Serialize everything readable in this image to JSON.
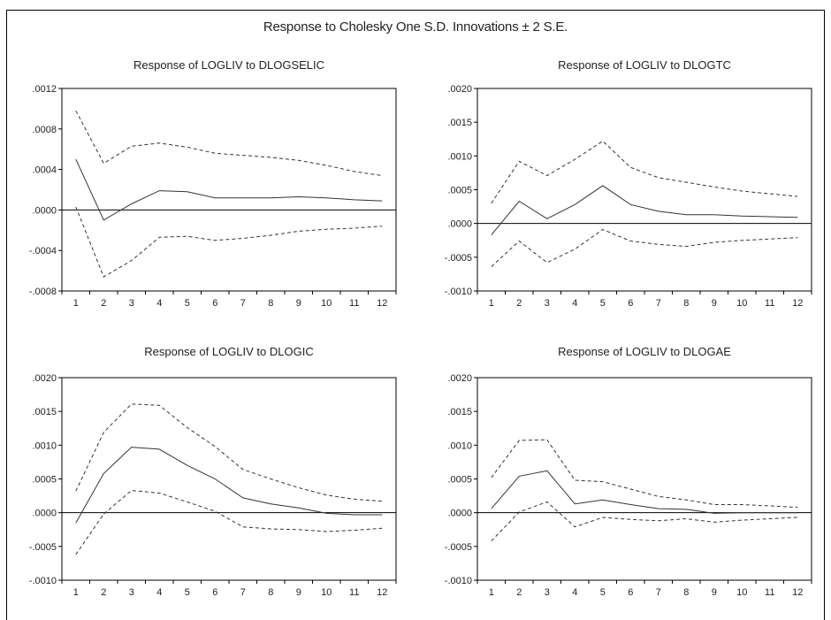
{
  "title": "Response to Cholesky One S.D. Innovations ± 2 S.E.",
  "chart_data": [
    {
      "type": "line",
      "title": "Response of LOGLIV to DLOGSELIC",
      "x": [
        1,
        2,
        3,
        4,
        5,
        6,
        7,
        8,
        9,
        10,
        11,
        12
      ],
      "ylim": [
        -0.0008,
        0.0012
      ],
      "yticks": [
        ".0012",
        ".0008",
        ".0004",
        ".0000",
        "-.0004",
        "-.0008"
      ],
      "ytick_values": [
        0.0012,
        0.0008,
        0.0004,
        0.0,
        -0.0004,
        -0.0008
      ],
      "series": [
        {
          "style": "solid",
          "values": [
            0.0005,
            -0.0001,
            6e-05,
            0.00019,
            0.00018,
            0.00012,
            0.00012,
            0.00012,
            0.00013,
            0.00012,
            0.0001,
            9e-05
          ]
        },
        {
          "style": "dashed",
          "values": [
            0.00098,
            0.00046,
            0.00063,
            0.00066,
            0.00062,
            0.00056,
            0.00054,
            0.00052,
            0.00049,
            0.00044,
            0.00038,
            0.00034
          ]
        },
        {
          "style": "dashed",
          "values": [
            3e-05,
            -0.00066,
            -0.0005,
            -0.00027,
            -0.00026,
            -0.0003,
            -0.00028,
            -0.00025,
            -0.00021,
            -0.00019,
            -0.00018,
            -0.00016
          ]
        }
      ]
    },
    {
      "type": "line",
      "title": "Response of LOGLIV to DLOGTC",
      "x": [
        1,
        2,
        3,
        4,
        5,
        6,
        7,
        8,
        9,
        10,
        11,
        12
      ],
      "ylim": [
        -0.001,
        0.002
      ],
      "yticks": [
        ".0020",
        ".0015",
        ".0010",
        ".0005",
        ".0000",
        "-.0005",
        "-.0010"
      ],
      "ytick_values": [
        0.002,
        0.0015,
        0.001,
        0.0005,
        0.0,
        -0.0005,
        -0.001
      ],
      "series": [
        {
          "style": "solid",
          "values": [
            -0.00017,
            0.00033,
            7e-05,
            0.00028,
            0.00056,
            0.00028,
            0.00018,
            0.00013,
            0.00013,
            0.00011,
            0.0001,
            9e-05
          ]
        },
        {
          "style": "dashed",
          "values": [
            0.0003,
            0.00092,
            0.00071,
            0.00095,
            0.00122,
            0.00083,
            0.00068,
            0.00061,
            0.00054,
            0.00048,
            0.00044,
            0.0004
          ]
        },
        {
          "style": "dashed",
          "values": [
            -0.00064,
            -0.00026,
            -0.00058,
            -0.00038,
            -9e-05,
            -0.00026,
            -0.00031,
            -0.00034,
            -0.00028,
            -0.00025,
            -0.00023,
            -0.00021
          ]
        }
      ]
    },
    {
      "type": "line",
      "title": "Response of LOGLIV to DLOGIC",
      "x": [
        1,
        2,
        3,
        4,
        5,
        6,
        7,
        8,
        9,
        10,
        11,
        12
      ],
      "ylim": [
        -0.001,
        0.002
      ],
      "yticks": [
        ".0020",
        ".0015",
        ".0010",
        ".0005",
        ".0000",
        "-.0005",
        "-.0010"
      ],
      "ytick_values": [
        0.002,
        0.0015,
        0.001,
        0.0005,
        0.0,
        -0.0005,
        -0.001
      ],
      "series": [
        {
          "style": "solid",
          "values": [
            -0.00015,
            0.00058,
            0.00097,
            0.00094,
            0.0007,
            0.0005,
            0.00022,
            0.00013,
            7e-05,
            -1e-05,
            -3e-05,
            -3e-05
          ]
        },
        {
          "style": "dashed",
          "values": [
            0.00032,
            0.00119,
            0.00161,
            0.00159,
            0.00126,
            0.00098,
            0.00064,
            0.0005,
            0.00037,
            0.00026,
            0.0002,
            0.00017
          ]
        },
        {
          "style": "dashed",
          "values": [
            -0.00062,
            -2e-05,
            0.00033,
            0.00029,
            0.00016,
            2e-05,
            -0.00021,
            -0.00024,
            -0.00025,
            -0.00028,
            -0.00026,
            -0.00023
          ]
        }
      ]
    },
    {
      "type": "line",
      "title": "Response of LOGLIV to DLOGAE",
      "x": [
        1,
        2,
        3,
        4,
        5,
        6,
        7,
        8,
        9,
        10,
        11,
        12
      ],
      "ylim": [
        -0.001,
        0.002
      ],
      "yticks": [
        ".0020",
        ".0015",
        ".0010",
        ".0005",
        ".0000",
        "-.0005",
        "-.0010"
      ],
      "ytick_values": [
        0.002,
        0.0015,
        0.001,
        0.0005,
        0.0,
        -0.0005,
        -0.001
      ],
      "series": [
        {
          "style": "solid",
          "values": [
            6e-05,
            0.00054,
            0.00062,
            0.00013,
            0.00019,
            0.00012,
            6e-05,
            5e-05,
            -1e-05,
            0.0,
            0.0,
            0.0
          ]
        },
        {
          "style": "dashed",
          "values": [
            0.00052,
            0.00107,
            0.00108,
            0.00048,
            0.00046,
            0.00035,
            0.00024,
            0.00019,
            0.00012,
            0.00012,
            0.0001,
            8e-05
          ]
        },
        {
          "style": "dashed",
          "values": [
            -0.00042,
            1e-05,
            0.00016,
            -0.00021,
            -7e-05,
            -0.0001,
            -0.00012,
            -9e-05,
            -0.00014,
            -0.00011,
            -9e-05,
            -7e-05
          ]
        }
      ]
    }
  ]
}
